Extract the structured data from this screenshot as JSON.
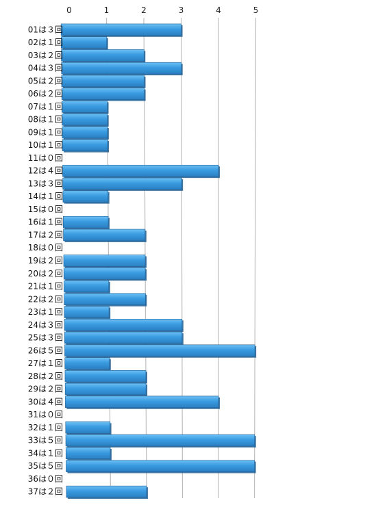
{
  "chart_data": {
    "type": "bar",
    "orientation": "horizontal",
    "title": "",
    "xlabel": "",
    "ylabel": "",
    "xlim": [
      0,
      5
    ],
    "x_ticks": [
      "0",
      "1",
      "2",
      "3",
      "4",
      "5"
    ],
    "tick_position": "top",
    "grid": true,
    "bar_color": "#3a9be0",
    "bar_edge_color": "#1f5f94",
    "grid_color": "#bdbdbd",
    "categories": [
      "01は３回",
      "02は１回",
      "03は２回",
      "04は３回",
      "05は２回",
      "06は２回",
      "07は１回",
      "08は１回",
      "09は１回",
      "10は１回",
      "11は０回",
      "12は４回",
      "13は３回",
      "14は１回",
      "15は０回",
      "16は１回",
      "17は２回",
      "18は０回",
      "19は２回",
      "20は２回",
      "21は１回",
      "22は２回",
      "23は１回",
      "24は３回",
      "25は３回",
      "26は５回",
      "27は１回",
      "28は２回",
      "29は２回",
      "30は４回",
      "31は０回",
      "32は１回",
      "33は５回",
      "34は１回",
      "35は５回",
      "36は０回",
      "37は２回"
    ],
    "values": [
      3,
      1,
      2,
      3,
      2,
      2,
      1,
      1,
      1,
      1,
      0,
      4,
      3,
      1,
      0,
      1,
      2,
      0,
      2,
      2,
      1,
      2,
      1,
      3,
      3,
      5,
      1,
      2,
      2,
      4,
      0,
      1,
      5,
      1,
      5,
      0,
      2
    ]
  }
}
